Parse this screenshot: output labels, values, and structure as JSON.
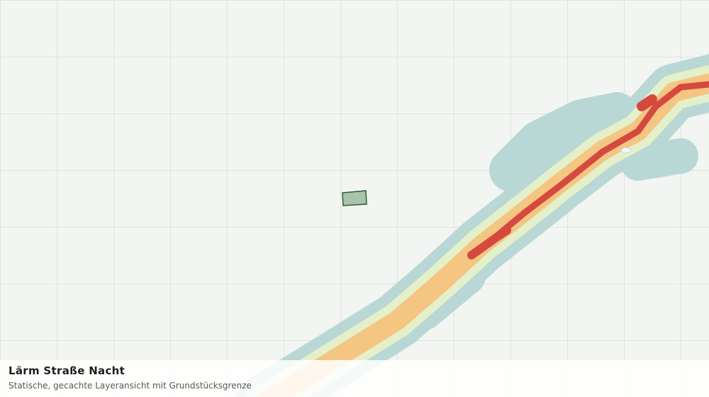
{
  "panel": {
    "title": "Lärm Straße Nacht",
    "subtitle": "Statische, gecachte Layeransicht mit Grundstücksgrenze"
  }
}
